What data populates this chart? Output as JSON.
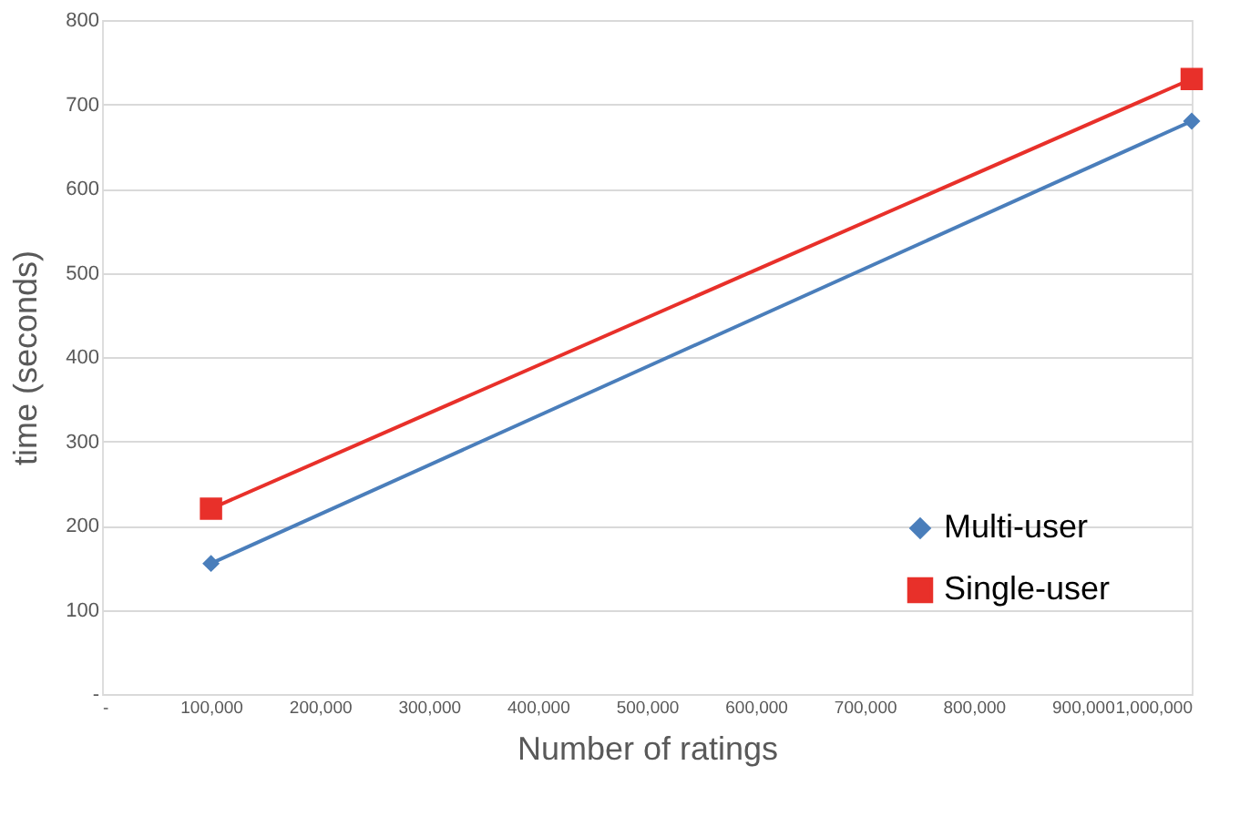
{
  "chart_data": {
    "type": "line",
    "xlabel": "Number of ratings",
    "ylabel": "time (seconds)",
    "x": [
      100000,
      1000000
    ],
    "series": [
      {
        "name": "Multi-user",
        "color": "#4a7ebb",
        "marker": "diamond",
        "values": [
          155,
          680
        ]
      },
      {
        "name": "Single-user",
        "color": "#e8302a",
        "marker": "square",
        "values": [
          220,
          730
        ]
      }
    ],
    "xlim": [
      0,
      1000000
    ],
    "xticks": [
      {
        "value": 0,
        "label": "-"
      },
      {
        "value": 100000,
        "label": "100,000"
      },
      {
        "value": 200000,
        "label": "200,000"
      },
      {
        "value": 300000,
        "label": "300,000"
      },
      {
        "value": 400000,
        "label": "400,000"
      },
      {
        "value": 500000,
        "label": "500,000"
      },
      {
        "value": 600000,
        "label": "600,000"
      },
      {
        "value": 700000,
        "label": "700,000"
      },
      {
        "value": 800000,
        "label": "800,000"
      },
      {
        "value": 900000,
        "label": "900,000"
      },
      {
        "value": 1000000,
        "label": "1,000,000"
      }
    ],
    "ylim": [
      0,
      800
    ],
    "yticks": [
      {
        "value": 0,
        "label": "-"
      },
      100,
      200,
      300,
      400,
      500,
      600,
      700,
      800
    ],
    "grid": "y",
    "legend": "right",
    "line_style": "solid"
  }
}
